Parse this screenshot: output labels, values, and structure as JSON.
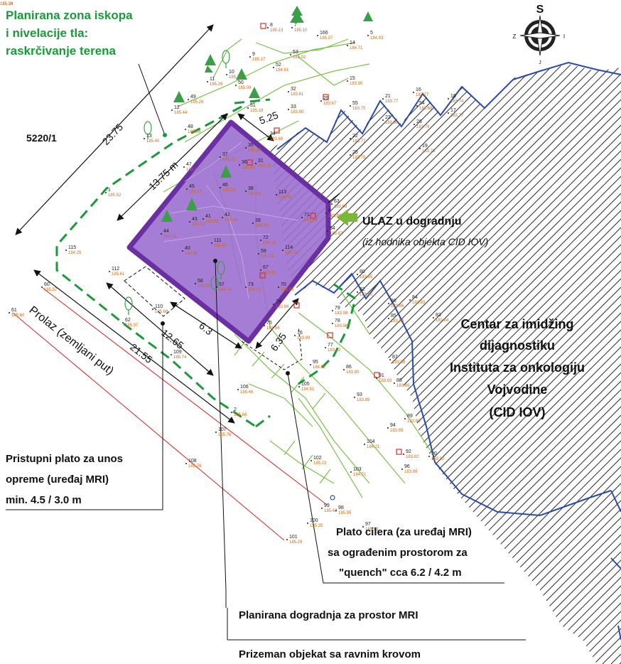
{
  "compass": {
    "south_label": "S",
    "west_label": "Z",
    "east_label": "I",
    "north_label": "J"
  },
  "labels": {
    "excavation_zone": [
      "Planirana zona iskopa",
      "i nivelacije tla:",
      "raskrčivanje terena"
    ],
    "parcel": "5220/1",
    "passage": "Prolaz (zemljani put)",
    "entrance_title": "ULAZ u dogradnju",
    "entrance_sub": "(iz hodnika objekta CID IOV)",
    "cid_center": [
      "Centar za imidžing",
      "dijagnostiku",
      "Instituta za onkologiju",
      "Vojvodine",
      "(CID IOV)"
    ],
    "access_plateau": [
      "Pristupni plato za unos",
      "opreme (uređaj MRI)",
      "min. 4.5 / 3.0 m"
    ],
    "chiller_plateau": [
      "Plato cilera (za uređaj MRI)",
      "sa ograđenim prostorom za",
      "\"quench\" cca 6.2 / 4.2 m"
    ],
    "planned_extension": "Planirana dogradnja za prostor MRI",
    "ground_floor": "Prizeman objekat sa ravnim krovom"
  },
  "dimensions": {
    "d1": "23.75",
    "d2": "13.75 m",
    "d3": "5.25",
    "d4": "21.55",
    "d5": "12.65",
    "d6": "6.3",
    "d7": "6.35"
  },
  "points": [
    {
      "n": "8",
      "e": "185.13"
    },
    {
      "n": "7",
      "e": "185.10"
    },
    {
      "n": "166",
      "e": "185.07"
    },
    {
      "n": "5",
      "e": "184.93"
    },
    {
      "n": "53",
      "e": "185.02"
    },
    {
      "n": "14",
      "e": "184.71"
    },
    {
      "n": "9",
      "e": "185.17"
    },
    {
      "n": "52",
      "e": "184.81"
    },
    {
      "n": "10",
      "e": "185.71"
    },
    {
      "n": "15",
      "e": "183.90"
    },
    {
      "n": "11",
      "e": "185.29"
    },
    {
      "n": "50",
      "e": "185.09"
    },
    {
      "n": "49",
      "e": "185.28"
    },
    {
      "n": "32",
      "e": "183.61"
    },
    {
      "n": "29",
      "e": "183.67"
    },
    {
      "n": "55",
      "e": "183.75"
    },
    {
      "n": "21",
      "e": "183.77"
    },
    {
      "n": "16",
      "e": "183.77"
    },
    {
      "n": "54",
      "e": "183.68"
    },
    {
      "n": "18",
      "e": "183.74"
    },
    {
      "n": "12",
      "e": "185.44"
    },
    {
      "n": "51",
      "e": "185.18"
    },
    {
      "n": "33",
      "e": "183.80"
    },
    {
      "n": "22",
      "e": "183.77"
    },
    {
      "n": "23",
      "e": "183.80"
    },
    {
      "n": "26",
      "e": "183.79"
    },
    {
      "n": "17",
      "e": "183.77"
    },
    {
      "n": "48",
      "e": "185.34"
    },
    {
      "n": "13",
      "e": "185.40"
    },
    {
      "n": "34",
      "e": "183.69"
    },
    {
      "n": "25",
      "e": "183.78"
    },
    {
      "n": "19",
      "e": "183.79"
    },
    {
      "n": "47",
      "e": "185.17"
    },
    {
      "n": "37",
      "e": "185.28"
    },
    {
      "n": "35",
      "e": "185.30"
    },
    {
      "n": "36",
      "e": "183.83"
    },
    {
      "n": "31",
      "e": "183.73"
    },
    {
      "n": "1",
      "e": "185.52"
    },
    {
      "n": "46",
      "e": "185.03"
    },
    {
      "n": "45",
      "e": "185.13"
    },
    {
      "n": "38",
      "e": "184.83"
    },
    {
      "n": "113",
      "e": "184.08"
    },
    {
      "n": "63",
      "e": "183.88"
    },
    {
      "n": "6",
      "e": "183.86"
    },
    {
      "n": "43",
      "e": "185.14"
    },
    {
      "n": "41",
      "e": "185.03"
    },
    {
      "n": "42",
      "e": "184.94"
    },
    {
      "n": "39",
      "e": "184.54"
    },
    {
      "n": "71",
      "e": "183.89"
    },
    {
      "n": "64",
      "e": "183.87"
    },
    {
      "n": "44",
      "e": "185.14"
    },
    {
      "n": "115",
      "e": "184.25"
    },
    {
      "n": "111",
      "e": "185.67"
    },
    {
      "n": "40",
      "e": "184.95"
    },
    {
      "n": "59",
      "e": "185.23"
    },
    {
      "n": "72",
      "e": "184.13"
    },
    {
      "n": "114",
      "e": "184.04"
    },
    {
      "n": "112",
      "e": "185.61"
    },
    {
      "n": "67",
      "e": "183.93"
    },
    {
      "n": "80",
      "e": "183.85"
    },
    {
      "n": "58",
      "e": "185.03"
    },
    {
      "n": "57",
      "e": "184.04"
    },
    {
      "n": "73",
      "e": "184.00"
    },
    {
      "n": "70",
      "e": "183.88"
    },
    {
      "n": "60",
      "e": "185.57"
    },
    {
      "n": "82",
      "e": "183.90"
    },
    {
      "n": "86",
      "e": "183.86"
    },
    {
      "n": "84",
      "e": "183.83"
    },
    {
      "n": "110",
      "e": "185.68"
    },
    {
      "n": "74",
      "e": "183.94"
    },
    {
      "n": "79",
      "e": "183.98"
    },
    {
      "n": "85",
      "e": "183.84"
    },
    {
      "n": "83",
      "e": "183.84"
    },
    {
      "n": "61",
      "e": "185.60"
    },
    {
      "n": "62",
      "e": "185.97"
    },
    {
      "n": "75",
      "e": "183.94"
    },
    {
      "n": "78",
      "e": "183.98"
    },
    {
      "n": "76",
      "e": "183.99"
    },
    {
      "n": "77",
      "e": "183.92"
    },
    {
      "n": "109",
      "e": "185.74"
    },
    {
      "n": "95",
      "e": "184.92"
    },
    {
      "n": "87",
      "e": "183.88"
    },
    {
      "n": "86",
      "e": "183.90"
    },
    {
      "n": "91",
      "e": "183.93"
    },
    {
      "n": "88",
      "e": "183.89"
    },
    {
      "n": "106",
      "e": "185.46"
    },
    {
      "n": "105",
      "e": "184.51"
    },
    {
      "n": "93",
      "e": "183.89"
    },
    {
      "n": "2",
      "e": "185.68"
    },
    {
      "n": "89",
      "e": "183.89"
    },
    {
      "n": "94",
      "e": "183.89"
    },
    {
      "n": "107",
      "e": "185.76"
    },
    {
      "n": "104",
      "e": "184.21"
    },
    {
      "n": "92",
      "e": "183.92"
    },
    {
      "n": "90",
      "e": "183.90"
    },
    {
      "n": "108",
      "e": "185.76"
    },
    {
      "n": "102",
      "e": "185.23"
    },
    {
      "n": "96",
      "e": "183.99"
    },
    {
      "n": "103",
      "e": "184.71"
    },
    {
      "n": "99",
      "e": "185.42"
    },
    {
      "n": "100",
      "e": "185.35"
    },
    {
      "n": "98",
      "e": "185.95"
    },
    {
      "n": "97",
      "e": "185.03"
    },
    {
      "n": "101",
      "e": "185.29"
    },
    {
      "n": "3",
      "e": "185.24"
    },
    {
      "n": "4",
      "e": "185.30"
    }
  ],
  "colors": {
    "zone_green": "#1a9a3a",
    "building_fill": "#9b6fcf",
    "building_border": "#6a2fa0",
    "existing_building_outline": "#2a4aa8",
    "road_red": "#d2322d",
    "point_orange": "#d06a10",
    "arrow_green": "#7ab83a"
  }
}
